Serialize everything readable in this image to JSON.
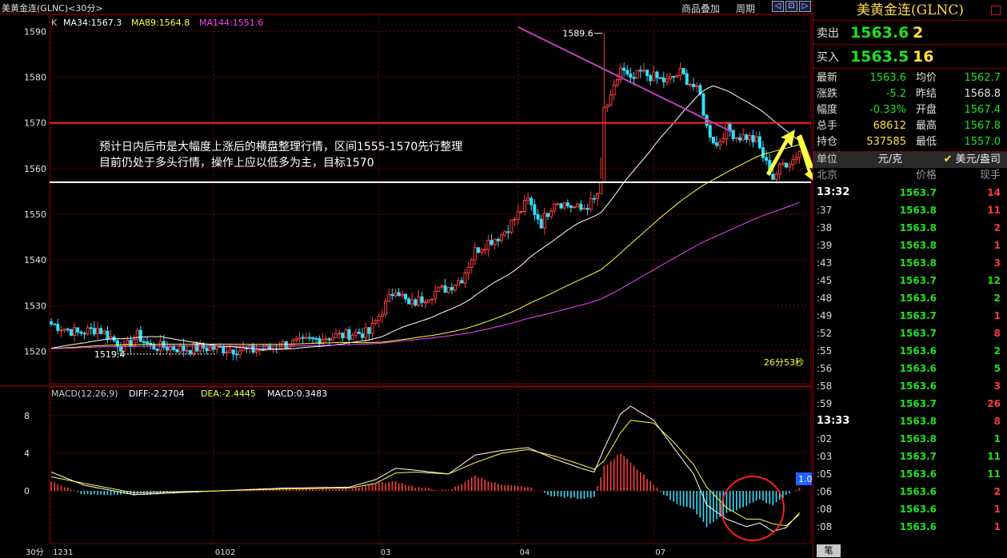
{
  "header": {
    "title": "美黄金连(GLNC)<30分>",
    "overlay_btn": "商品叠加",
    "period_btn": "周期",
    "win_btns": [
      "◁",
      "⊡",
      "▷"
    ]
  },
  "colors": {
    "up": "#ff3c3c",
    "down": "#30e0ff",
    "grid": "#7a0000",
    "ma34": "#ffffff",
    "ma89": "#ffff40",
    "ma144": "#ff40ff",
    "green": "#20e020",
    "yellow": "#ffe040"
  },
  "chart_data": [
    {
      "type": "candlestick",
      "title": "",
      "legend": [
        {
          "name": "K",
          "color": "#cccccc"
        },
        {
          "name": "MA34:1567.3",
          "color": "#ffffff"
        },
        {
          "name": "MA89:1564.8",
          "color": "#ffff40"
        },
        {
          "name": "MA144:1551.6",
          "color": "#ff40ff"
        }
      ],
      "ylim": [
        1515,
        1592
      ],
      "yticks": [
        1520,
        1530,
        1540,
        1550,
        1560,
        1570,
        1580,
        1590
      ],
      "x_labels": [
        {
          "label": "1231",
          "index": 0
        },
        {
          "label": "0102",
          "index": 49
        },
        {
          "label": "03",
          "index": 99
        },
        {
          "label": "04",
          "index": 141
        },
        {
          "label": "07",
          "index": 182
        }
      ],
      "period_label": "30分",
      "countdown": "26分53秒",
      "high_label": "1589.6",
      "low_label": "1519.4",
      "support": 1557,
      "resistance": 1570,
      "trend_from": [
        141,
        1591
      ],
      "trend_to": [
        196,
        1567.3
      ],
      "annotation": [
        "预计日内后市是大幅度上涨后的横盘整理行情，区间1555-1570先行整理",
        "目前仍处于多头行情，操作上应以低多为主，目标1570"
      ],
      "keypoints": [
        [
          0,
          1526
        ],
        [
          8,
          1524
        ],
        [
          14,
          1525
        ],
        [
          18,
          1523
        ],
        [
          22,
          1520.5
        ],
        [
          26,
          1523.5
        ],
        [
          30,
          1521
        ],
        [
          34,
          1521
        ],
        [
          40,
          1520.5
        ],
        [
          46,
          1520.8
        ],
        [
          52,
          1520.5
        ],
        [
          60,
          1520.2
        ],
        [
          66,
          1520.5
        ],
        [
          70,
          1521.5
        ],
        [
          76,
          1522
        ],
        [
          82,
          1523
        ],
        [
          88,
          1523.5
        ],
        [
          92,
          1524
        ],
        [
          96,
          1524
        ],
        [
          100,
          1529
        ],
        [
          104,
          1534
        ],
        [
          108,
          1530
        ],
        [
          112,
          1531.5
        ],
        [
          116,
          1533
        ],
        [
          120,
          1534
        ],
        [
          124,
          1536
        ],
        [
          128,
          1542
        ],
        [
          132,
          1544
        ],
        [
          136,
          1545.5
        ],
        [
          140,
          1549
        ],
        [
          144,
          1553
        ],
        [
          148,
          1548
        ],
        [
          152,
          1553
        ],
        [
          156,
          1552
        ],
        [
          160,
          1551
        ],
        [
          164,
          1553
        ],
        [
          166,
          1556
        ],
        [
          167,
          1573
        ],
        [
          169,
          1575
        ],
        [
          172,
          1582
        ],
        [
          175,
          1579
        ],
        [
          178,
          1581
        ],
        [
          182,
          1580
        ],
        [
          186,
          1579
        ],
        [
          190,
          1581
        ],
        [
          194,
          1578
        ],
        [
          196,
          1576
        ],
        [
          198,
          1569
        ],
        [
          201,
          1565
        ],
        [
          204,
          1569
        ],
        [
          207,
          1567
        ],
        [
          210,
          1567
        ],
        [
          213,
          1566
        ],
        [
          216,
          1561
        ],
        [
          218,
          1558
        ],
        [
          221,
          1561
        ],
        [
          224,
          1562
        ],
        [
          226,
          1564
        ]
      ]
    },
    {
      "type": "macd",
      "legend": [
        {
          "name": "MACD(12,26,9)",
          "color": "#cccccc"
        },
        {
          "name": "DIFF:-2.2704",
          "color": "#ffffff"
        },
        {
          "name": "DEA:-2.4445",
          "color": "#ffff40"
        },
        {
          "name": "MACD:0.3483",
          "color": "#ffffff"
        }
      ],
      "ylim": [
        -5.6,
        10.2
      ],
      "yticks": [
        0,
        4,
        8
      ],
      "scale_badge": "1.0",
      "diff_keypoints": [
        [
          0,
          2.0
        ],
        [
          10,
          0.6
        ],
        [
          25,
          -0.4
        ],
        [
          50,
          0.0
        ],
        [
          70,
          0.3
        ],
        [
          90,
          0.4
        ],
        [
          98,
          1.2
        ],
        [
          104,
          2.4
        ],
        [
          110,
          2.2
        ],
        [
          120,
          1.8
        ],
        [
          128,
          3.8
        ],
        [
          136,
          4.3
        ],
        [
          144,
          4.6
        ],
        [
          152,
          3.4
        ],
        [
          160,
          2.4
        ],
        [
          164,
          2.0
        ],
        [
          167,
          4.5
        ],
        [
          172,
          8.2
        ],
        [
          175,
          9.0
        ],
        [
          182,
          7.5
        ],
        [
          188,
          4.6
        ],
        [
          194,
          1.8
        ],
        [
          198,
          -1.5
        ],
        [
          204,
          -3.0
        ],
        [
          210,
          -3.8
        ],
        [
          214,
          -3.4
        ],
        [
          218,
          -4.3
        ],
        [
          222,
          -3.9
        ],
        [
          226,
          -2.3
        ]
      ],
      "dea_keypoints": [
        [
          0,
          1.5
        ],
        [
          10,
          0.8
        ],
        [
          25,
          -0.2
        ],
        [
          50,
          0.0
        ],
        [
          70,
          0.2
        ],
        [
          90,
          0.3
        ],
        [
          98,
          0.8
        ],
        [
          104,
          1.9
        ],
        [
          110,
          2.0
        ],
        [
          120,
          1.8
        ],
        [
          128,
          3.0
        ],
        [
          136,
          4.0
        ],
        [
          144,
          4.4
        ],
        [
          152,
          3.7
        ],
        [
          160,
          2.8
        ],
        [
          164,
          2.3
        ],
        [
          167,
          3.2
        ],
        [
          172,
          6.2
        ],
        [
          175,
          7.5
        ],
        [
          182,
          7.2
        ],
        [
          188,
          5.2
        ],
        [
          194,
          2.8
        ],
        [
          198,
          0.4
        ],
        [
          204,
          -1.8
        ],
        [
          210,
          -3.0
        ],
        [
          214,
          -3.0
        ],
        [
          218,
          -3.5
        ],
        [
          222,
          -3.7
        ],
        [
          226,
          -2.5
        ]
      ]
    }
  ],
  "quote": {
    "title": "美黄金连(GLNC)",
    "sell_label": "卖出",
    "sell_price": "1563.6",
    "sell_vol": "2",
    "buy_label": "买入",
    "buy_price": "1563.5",
    "buy_vol": "16"
  },
  "stats": [
    {
      "k": "最新",
      "v": "1563.6",
      "vc": "#20e020",
      "k2": "均价",
      "v2": "1562.7",
      "v2c": "#20e020"
    },
    {
      "k": "涨跌",
      "v": "-5.2",
      "vc": "#20e020",
      "k2": "昨结",
      "v2": "1568.8",
      "v2c": "#e0e0e0"
    },
    {
      "k": "幅度",
      "v": "-0.33%",
      "vc": "#20e020",
      "k2": "开盘",
      "v2": "1567.4",
      "v2c": "#20e020"
    },
    {
      "k": "总手",
      "v": "68612",
      "vc": "#ffe040",
      "k2": "最高",
      "v2": "1567.8",
      "v2c": "#20e020"
    },
    {
      "k": "持仓",
      "v": "537585",
      "vc": "#ffe040",
      "k2": "最低",
      "v2": "1557.0",
      "v2c": "#20e020"
    }
  ],
  "unit": {
    "label": "单位",
    "value": "元/克",
    "alt": "美元/盎司"
  },
  "ticks_header": {
    "time": "北京",
    "price": "价格",
    "vol": "现手"
  },
  "ticks": [
    {
      "t": "13:32",
      "p": "1563.7",
      "v": "14",
      "up": true,
      "major": true
    },
    {
      "t": ":37",
      "p": "1563.8",
      "v": "11",
      "up": true
    },
    {
      "t": ":38",
      "p": "1563.8",
      "v": "2",
      "up": true
    },
    {
      "t": ":39",
      "p": "1563.8",
      "v": "1",
      "up": true
    },
    {
      "t": ":43",
      "p": "1563.8",
      "v": "3",
      "up": true
    },
    {
      "t": ":45",
      "p": "1563.7",
      "v": "12",
      "up": false
    },
    {
      "t": ":48",
      "p": "1563.6",
      "v": "2",
      "up": false
    },
    {
      "t": ":49",
      "p": "1563.7",
      "v": "1",
      "up": true
    },
    {
      "t": ":52",
      "p": "1563.7",
      "v": "8",
      "up": true
    },
    {
      "t": ":55",
      "p": "1563.6",
      "v": "2",
      "up": false
    },
    {
      "t": ":56",
      "p": "1563.6",
      "v": "5",
      "up": false
    },
    {
      "t": ":58",
      "p": "1563.6",
      "v": "3",
      "up": true
    },
    {
      "t": ":59",
      "p": "1563.7",
      "v": "26",
      "up": true
    },
    {
      "t": "13:33",
      "p": "1563.8",
      "v": "8",
      "up": true,
      "major": true
    },
    {
      "t": ":02",
      "p": "1563.8",
      "v": "1",
      "up": false
    },
    {
      "t": ":03",
      "p": "1563.7",
      "v": "11",
      "up": false
    },
    {
      "t": ":05",
      "p": "1563.6",
      "v": "11",
      "up": false
    },
    {
      "t": ":06",
      "p": "1563.6",
      "v": "2",
      "up": true
    },
    {
      "t": ":08",
      "p": "1563.6",
      "v": "1",
      "up": true
    },
    {
      "t": ":08",
      "p": "1563.6",
      "v": "1",
      "up": true
    }
  ],
  "bottom_tab": "笔"
}
